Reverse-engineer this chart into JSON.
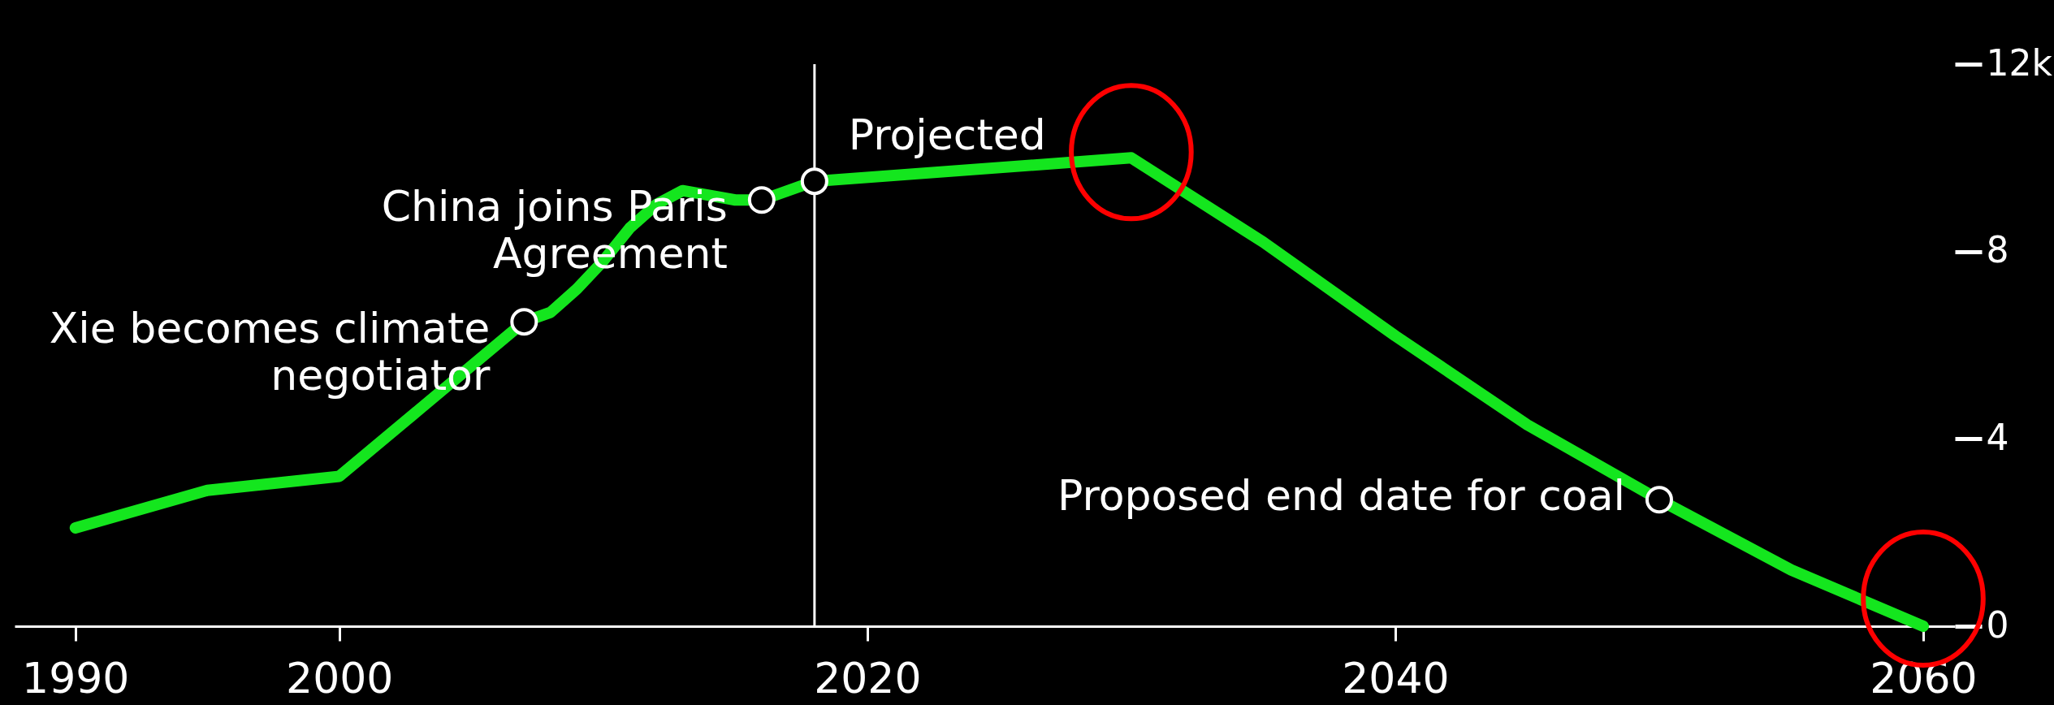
{
  "chart_data": {
    "type": "line",
    "x": [
      1990,
      1995,
      2000,
      2007,
      2008,
      2009,
      2010,
      2011,
      2012,
      2013,
      2014,
      2015,
      2016,
      2018,
      2030,
      2035,
      2040,
      2045,
      2050,
      2055,
      2060
    ],
    "values": [
      2.1,
      2.9,
      3.2,
      6.5,
      6.7,
      7.2,
      7.8,
      8.5,
      9.0,
      9.3,
      9.2,
      9.1,
      9.1,
      9.5,
      10.0,
      8.2,
      6.2,
      4.3,
      2.7,
      1.2,
      0
    ],
    "color": "#14e61e",
    "xlim": [
      1987.7,
      2061.2
    ],
    "xticks": [
      1990,
      2000,
      2020,
      2040,
      2060
    ],
    "ylim": [
      0,
      12
    ],
    "yticks": [
      0,
      4,
      8,
      {
        "value": 12,
        "label": "12k"
      }
    ],
    "ref_lines": [
      {
        "axis": "x",
        "value": 2018,
        "label": "Projected",
        "color": "#ffffff"
      }
    ],
    "annotations": [
      {
        "text": "Xie becomes climate negotiator",
        "x": 2007,
        "y": 6.5
      },
      {
        "text": "China joins Paris Agreement",
        "x": 2016,
        "y": 9.1
      },
      {
        "text": "Proposed end date for coal",
        "x": 2050,
        "y": 2.7
      }
    ]
  }
}
